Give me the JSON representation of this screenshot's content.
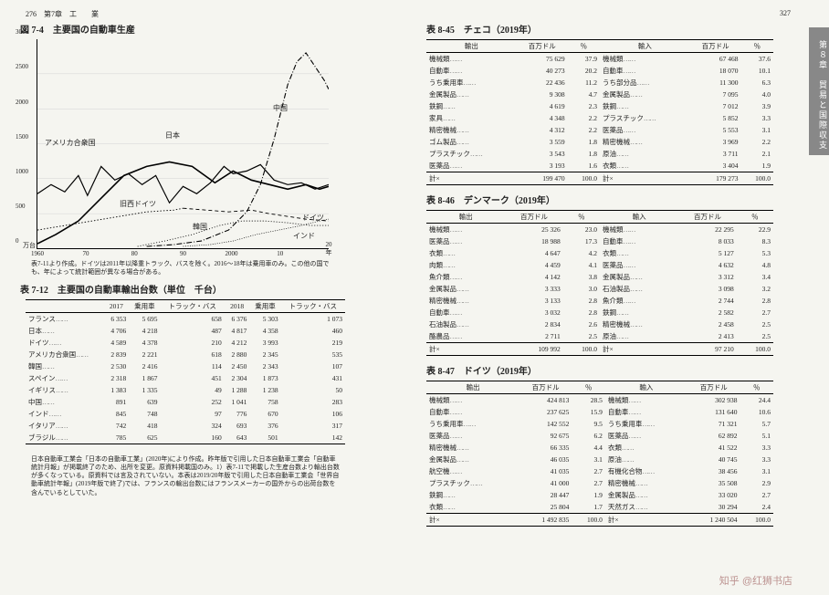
{
  "pageLeft": "276　第7章　工　　業",
  "pageRight": "327",
  "sideTab": "第８章　貿易と国際収支",
  "fig74": {
    "title": "図 7-4　主要国の自動車生産",
    "yunit": "万台",
    "yticks": [
      "0",
      "500",
      "1000",
      "1500",
      "2000",
      "2500",
      "3000"
    ],
    "xticks": [
      "1960",
      "70",
      "80",
      "90",
      "2000",
      "10",
      "20年"
    ],
    "labels": {
      "usa": "アメリカ合衆国",
      "japan": "日本",
      "wger": "旧西ドイツ",
      "germany": "ドイツ",
      "korea": "韓国",
      "china": "中国",
      "india": "インド"
    },
    "note": "表7-11より作成。ドイツは2011年以降重トラック、バスを除く。2016～18年は乗用車のみ。この他の国でも、年によって統計範囲が異なる場合がある。"
  },
  "tbl712": {
    "title": "表 7-12　主要国の自動車輸出台数（単位　千台）",
    "head": [
      "",
      "2017",
      "乗用車",
      "トラック・バス",
      "2018",
      "乗用車",
      "トラック・バス"
    ],
    "rows": [
      [
        "フランス",
        "6 353",
        "5 695",
        "658",
        "6 376",
        "5 303",
        "1 073"
      ],
      [
        "日本",
        "4 706",
        "4 218",
        "487",
        "4 817",
        "4 358",
        "460"
      ],
      [
        "ドイツ",
        "4 589",
        "4 378",
        "210",
        "4 212",
        "3 993",
        "219"
      ],
      [
        "アメリカ合衆国",
        "2 839",
        "2 221",
        "618",
        "2 880",
        "2 345",
        "535"
      ],
      [
        "韓国",
        "2 530",
        "2 416",
        "114",
        "2 450",
        "2 343",
        "107"
      ],
      [
        "スペイン",
        "2 318",
        "1 867",
        "451",
        "2 304",
        "1 873",
        "431"
      ],
      [
        "イギリス",
        "1 383",
        "1 335",
        "49",
        "1 288",
        "1 238",
        "50"
      ],
      [
        "中国",
        "891",
        "639",
        "252",
        "1 041",
        "758",
        "283"
      ],
      [
        "インド",
        "845",
        "748",
        "97",
        "776",
        "670",
        "106"
      ],
      [
        "イタリア",
        "742",
        "418",
        "324",
        "693",
        "376",
        "317"
      ],
      [
        "ブラジル",
        "785",
        "625",
        "160",
        "643",
        "501",
        "142"
      ]
    ],
    "note": "日本自動車工業会「日本の自動車工業」(2020年)により作成。昨年版で引用した日本自動車工業会「自動車統計月報」が掲載終了のため、出所を変更。原資料掲載国のみ。1）表7-11で掲載した生産台数より輸出台数が多くなっている。原資料では言及されていない。本表は2019/20年版で引用した日本自動車工業会「世界自動車統計年報」(2019年版で終了)では、フランスの輸出台数にはフランスメーカーの国外からの出荷台数を含んでいるとしていた。"
  },
  "tables8": [
    {
      "title": "表 8-45　チェコ（2019年）",
      "head": [
        "輸出",
        "百万ドル",
        "％",
        "輸入",
        "百万ドル",
        "％"
      ],
      "rows": [
        [
          "機械類",
          "75 629",
          "37.9",
          "機械類",
          "67 468",
          "37.6"
        ],
        [
          "自動車",
          "40 273",
          "20.2",
          "自動車",
          "18 070",
          "10.1"
        ],
        [
          "うち乗用車",
          "22 436",
          "11.2",
          "うち部分品",
          "11 300",
          "6.3"
        ],
        [
          "金属製品",
          "9 308",
          "4.7",
          "金属製品",
          "7 095",
          "4.0"
        ],
        [
          "鉄鋼",
          "4 619",
          "2.3",
          "鉄鋼",
          "7 012",
          "3.9"
        ],
        [
          "家具",
          "4 348",
          "2.2",
          "プラスチック",
          "5 852",
          "3.3"
        ],
        [
          "精密機械",
          "4 312",
          "2.2",
          "医薬品",
          "5 553",
          "3.1"
        ],
        [
          "ゴム製品",
          "3 559",
          "1.8",
          "精密機械",
          "3 969",
          "2.2"
        ],
        [
          "プラスチック",
          "3 543",
          "1.8",
          "原油",
          "3 711",
          "2.1"
        ],
        [
          "医薬品",
          "3 193",
          "1.6",
          "衣類",
          "3 404",
          "1.9"
        ]
      ],
      "total": [
        "計×",
        "199 470",
        "100.0",
        "計×",
        "179 273",
        "100.0"
      ]
    },
    {
      "title": "表 8-46　デンマーク（2019年）",
      "head": [
        "輸出",
        "百万ドル",
        "％",
        "輸入",
        "百万ドル",
        "％"
      ],
      "rows": [
        [
          "機械類",
          "25 326",
          "23.0",
          "機械類",
          "22 295",
          "22.9"
        ],
        [
          "医薬品",
          "18 988",
          "17.3",
          "自動車",
          "8 033",
          "8.3"
        ],
        [
          "衣類",
          "4 647",
          "4.2",
          "衣類",
          "5 127",
          "5.3"
        ],
        [
          "肉類",
          "4 459",
          "4.1",
          "医薬品",
          "4 632",
          "4.8"
        ],
        [
          "魚介類",
          "4 142",
          "3.8",
          "金属製品",
          "3 312",
          "3.4"
        ],
        [
          "金属製品",
          "3 333",
          "3.0",
          "石油製品",
          "3 098",
          "3.2"
        ],
        [
          "精密機械",
          "3 133",
          "2.8",
          "魚介類",
          "2 744",
          "2.8"
        ],
        [
          "自動車",
          "3 032",
          "2.8",
          "鉄鋼",
          "2 582",
          "2.7"
        ],
        [
          "石油製品",
          "2 834",
          "2.6",
          "精密機械",
          "2 458",
          "2.5"
        ],
        [
          "酪農品",
          "2 711",
          "2.5",
          "原油",
          "2 413",
          "2.5"
        ]
      ],
      "total": [
        "計×",
        "109 992",
        "100.0",
        "計×",
        "97 210",
        "100.0"
      ]
    },
    {
      "title": "表 8-47　ドイツ（2019年）",
      "head": [
        "輸出",
        "百万ドル",
        "％",
        "輸入",
        "百万ドル",
        "％"
      ],
      "rows": [
        [
          "機械類",
          "424 813",
          "28.5",
          "機械類",
          "302 938",
          "24.4"
        ],
        [
          "自動車",
          "237 625",
          "15.9",
          "自動車",
          "131 640",
          "10.6"
        ],
        [
          "うち乗用車",
          "142 552",
          "9.5",
          "うち乗用車",
          "71 321",
          "5.7"
        ],
        [
          "医薬品",
          "92 675",
          "6.2",
          "医薬品",
          "62 892",
          "5.1"
        ],
        [
          "精密機械",
          "66 335",
          "4.4",
          "衣類",
          "41 522",
          "3.3"
        ],
        [
          "金属製品",
          "46 035",
          "3.1",
          "原油",
          "40 745",
          "3.3"
        ],
        [
          "航空機",
          "41 035",
          "2.7",
          "有機化合物",
          "38 456",
          "3.1"
        ],
        [
          "プラスチック",
          "41 000",
          "2.7",
          "精密機械",
          "35 508",
          "2.9"
        ],
        [
          "鉄鋼",
          "28 447",
          "1.9",
          "金属製品",
          "33 020",
          "2.7"
        ],
        [
          "衣類",
          "25 804",
          "1.7",
          "天然ガス",
          "30 294",
          "2.4"
        ]
      ],
      "total": [
        "計×",
        "1 492 835",
        "100.0",
        "計×",
        "1 240 504",
        "100.0"
      ]
    }
  ],
  "watermark": "知乎 @红狮书店"
}
